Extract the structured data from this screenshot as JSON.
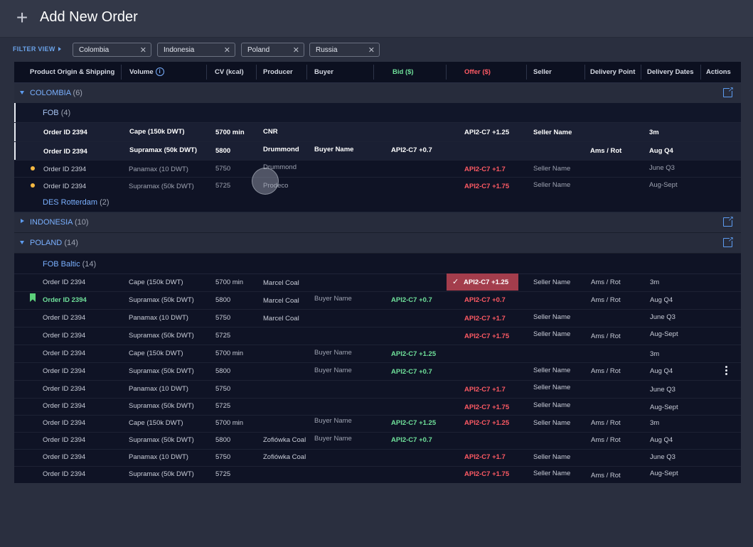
{
  "header": {
    "title": "Add New Order"
  },
  "filter": {
    "label": "FILTER VIEW",
    "chips": [
      "Colombia",
      "Indonesia",
      "Poland",
      "Russia"
    ]
  },
  "columns": [
    "Product Origin & Shipping",
    "Volume",
    "CV (kcal)",
    "Producer",
    "Buyer",
    "Bid ($)",
    "Offer ($)",
    "Seller",
    "Delivery Point",
    "Delivery Dates",
    "Actions"
  ],
  "colors": {
    "bid": "#6fe09a",
    "offer": "#ff5a64",
    "accent": "#7ab0ff",
    "selected_offer_bg": "#a33d4c"
  },
  "groups": {
    "colombia": {
      "name": "COLOMBIA",
      "count": "(6)"
    },
    "indonesia": {
      "name": "INDONESIA",
      "count": "(10)"
    },
    "poland": {
      "name": "POLAND",
      "count": "(14)"
    }
  },
  "subgroups": {
    "fob": {
      "name": "FOB",
      "count": "(4)"
    },
    "des": {
      "name": "DES Rotterdam",
      "count": "(2)"
    },
    "fob_baltic": {
      "name": "FOB Baltic",
      "count": "(14)"
    }
  },
  "colombia_rows": [
    {
      "order": "Order ID 2394",
      "volume": "Cape (150k DWT)",
      "cv": "5700 min",
      "producer": "CNR",
      "buyer": "",
      "bid": "",
      "offer": "API2-C7 +1.25",
      "seller": "Seller Name",
      "delivery_point": "",
      "delivery_dates": "3m"
    },
    {
      "order": "Order ID 2394",
      "volume": "Supramax (50k DWT)",
      "cv": "5800",
      "producer": "Drummond",
      "buyer": "Buyer Name",
      "bid": "API2-C7 +0.7",
      "offer": "",
      "seller": "",
      "delivery_point": "Ams / Rot",
      "delivery_dates": "Aug Q4"
    },
    {
      "order": "Order ID 2394",
      "volume": "Panamax (10 DWT)",
      "cv": "5750",
      "producer": "Drummond",
      "buyer": "",
      "bid": "",
      "offer": "API2-C7 +1.7",
      "seller": "Seller Name",
      "delivery_point": "",
      "delivery_dates": "June Q3"
    },
    {
      "order": "Order ID 2394",
      "volume": "Supramax (50k DWT)",
      "cv": "5725",
      "producer": "Prodeco",
      "buyer": "",
      "bid": "",
      "offer": "API2-C7 +1.75",
      "seller": "Seller Name",
      "delivery_point": "",
      "delivery_dates": "Aug-Sept"
    }
  ],
  "poland_rows": [
    {
      "order": "Order ID 2394",
      "volume": "Cape (150k DWT)",
      "cv": "5700 min",
      "producer": "Marcel Coal",
      "buyer": "",
      "bid": "",
      "offer": "API2-C7 +1.25",
      "seller": "Seller Name",
      "delivery_point": "Ams / Rot",
      "delivery_dates": "3m"
    },
    {
      "order": "Order ID 2394",
      "volume": "Supramax (50k DWT)",
      "cv": "5800",
      "producer": "Marcel Coal",
      "buyer": "Buyer Name",
      "bid": "API2-C7 +0.7",
      "offer": "API2-C7 +0.7",
      "seller": "",
      "delivery_point": "Ams / Rot",
      "delivery_dates": "Aug Q4"
    },
    {
      "order": "Order ID 2394",
      "volume": "Panamax (10 DWT)",
      "cv": "5750",
      "producer": "Marcel Coal",
      "buyer": "",
      "bid": "",
      "offer": "API2-C7 +1.7",
      "seller": "Seller Name",
      "delivery_point": "",
      "delivery_dates": "June Q3"
    },
    {
      "order": "Order ID 2394",
      "volume": "Supramax (50k DWT)",
      "cv": "5725",
      "producer": "",
      "buyer": "",
      "bid": "",
      "offer": "API2-C7 +1.75",
      "seller": "Seller Name",
      "delivery_point": "Ams / Rot",
      "delivery_dates": "Aug-Sept"
    },
    {
      "order": "Order ID 2394",
      "volume": "Cape (150k DWT)",
      "cv": "5700 min",
      "producer": "",
      "buyer": "Buyer Name",
      "bid": "API2-C7 +1.25",
      "offer": "",
      "seller": "",
      "delivery_point": "",
      "delivery_dates": "3m"
    },
    {
      "order": "Order ID 2394",
      "volume": "Supramax (50k DWT)",
      "cv": "5800",
      "producer": "",
      "buyer": "Buyer Name",
      "bid": "API2-C7 +0.7",
      "offer": "",
      "seller": "Seller Name",
      "delivery_point": "Ams / Rot",
      "delivery_dates": "Aug Q4"
    },
    {
      "order": "Order ID 2394",
      "volume": "Panamax (10 DWT)",
      "cv": "5750",
      "producer": "",
      "buyer": "",
      "bid": "",
      "offer": "API2-C7 +1.7",
      "seller": "Seller Name",
      "delivery_point": "",
      "delivery_dates": "June Q3"
    },
    {
      "order": "Order ID 2394",
      "volume": "Supramax (50k DWT)",
      "cv": "5725",
      "producer": "",
      "buyer": "",
      "bid": "",
      "offer": "API2-C7 +1.75",
      "seller": "Seller Name",
      "delivery_point": "",
      "delivery_dates": "Aug-Sept"
    },
    {
      "order": "Order ID 2394",
      "volume": "Cape (150k DWT)",
      "cv": "5700 min",
      "producer": "",
      "buyer": "Buyer Name",
      "bid": "API2-C7 +1.25",
      "offer": "API2-C7 +1.25",
      "seller": "Seller Name",
      "delivery_point": "Ams / Rot",
      "delivery_dates": "3m"
    },
    {
      "order": "Order ID 2394",
      "volume": "Supramax (50k DWT)",
      "cv": "5800",
      "producer": "Zofiówka Coal",
      "buyer": "Buyer Name",
      "bid": "API2-C7 +0.7",
      "offer": "",
      "seller": "",
      "delivery_point": "Ams / Rot",
      "delivery_dates": "Aug Q4"
    },
    {
      "order": "Order ID 2394",
      "volume": "Panamax (10 DWT)",
      "cv": "5750",
      "producer": "Zofiówka Coal",
      "buyer": "",
      "bid": "",
      "offer": "API2-C7 +1.7",
      "seller": "Seller Name",
      "delivery_point": "",
      "delivery_dates": "June Q3"
    },
    {
      "order": "Order ID 2394",
      "volume": "Supramax (50k DWT)",
      "cv": "5725",
      "producer": "",
      "buyer": "",
      "bid": "",
      "offer": "API2-C7 +1.75",
      "seller": "Seller Name",
      "delivery_point": "Ams / Rot",
      "delivery_dates": "Aug-Sept"
    }
  ]
}
